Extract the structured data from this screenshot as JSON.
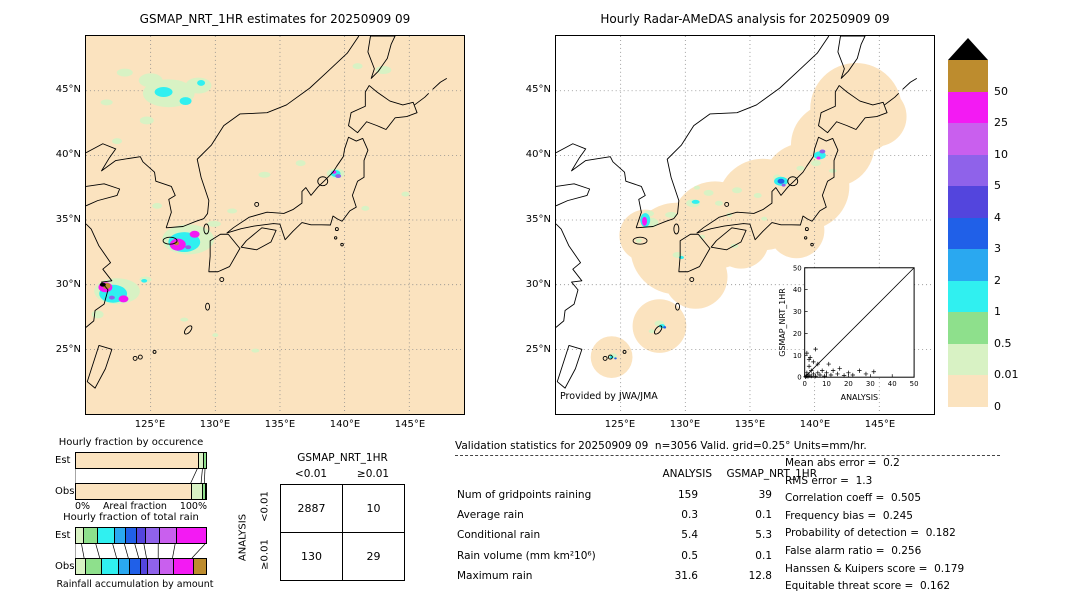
{
  "palette": {
    "peach": "#fbe3bf",
    "palegreen": "#d8f2c4",
    "green": "#8ee08c",
    "cyan": "#30f0f0",
    "sky": "#2aa8f0",
    "blue": "#2060e8",
    "indigo": "#5345dd",
    "purple": "#8f62ea",
    "orchid": "#c95fee",
    "magenta": "#f31af3",
    "tan": "#bd8c2e",
    "black": "#000000"
  },
  "colorbar": {
    "units": "mm/hr",
    "tick_labels": [
      "50",
      "25",
      "10",
      "5",
      "4",
      "3",
      "2",
      "1",
      "0.5",
      "0.01",
      "0"
    ],
    "levels_top_to_bottom": [
      "tan",
      "magenta",
      "orchid",
      "purple",
      "indigo",
      "blue",
      "sky",
      "cyan",
      "green",
      "palegreen",
      "peach"
    ],
    "over_color": "#000000"
  },
  "validation": {
    "header": "Validation statistics for 20250909 09  n=3056 Valid. grid=0.25° Units=mm/hr.",
    "col_headers": [
      "ANALYSIS",
      "GSMAP_NRT_1HR"
    ],
    "rows": [
      {
        "label": "Num of gridpoints raining",
        "analysis": "159",
        "gsmap": "39"
      },
      {
        "label": "Average rain",
        "analysis": "0.3",
        "gsmap": "0.1"
      },
      {
        "label": "Conditional rain",
        "analysis": "5.4",
        "gsmap": "5.3"
      },
      {
        "label": "Rain volume (mm km²10⁶)",
        "analysis": "0.5",
        "gsmap": "0.1"
      },
      {
        "label": "Maximum rain",
        "analysis": "31.6",
        "gsmap": "12.8"
      }
    ],
    "scores": [
      {
        "label": "Mean abs error",
        "value": "0.2"
      },
      {
        "label": "RMS error",
        "value": "1.3"
      },
      {
        "label": "Correlation coeff",
        "value": "0.505"
      },
      {
        "label": "Frequency bias",
        "value": "0.245"
      },
      {
        "label": "Probability of detection",
        "value": "0.182"
      },
      {
        "label": "False alarm ratio",
        "value": "0.256"
      },
      {
        "label": "Hanssen & Kuipers score",
        "value": "0.179"
      },
      {
        "label": "Equitable threat score",
        "value": "0.162"
      }
    ]
  },
  "chart_data": [
    {
      "type": "heatmap",
      "name": "gsmap-precip-map",
      "title": "GSMAP_NRT_1HR estimates for 20250909 09",
      "units": "mm/hr",
      "lon_range": [
        120,
        149.2
      ],
      "lat_range": [
        20,
        49.2
      ],
      "lon_gridlines": [
        125,
        130,
        135,
        140,
        145
      ],
      "lat_gridlines": [
        45,
        40,
        35,
        30,
        25
      ],
      "lon_tick_labels": [
        "125°E",
        "130°E",
        "135°E",
        "140°E",
        "145°E"
      ],
      "lat_tick_labels": [
        "45°N",
        "40°N",
        "35°N",
        "30°N",
        "25°N"
      ],
      "blob_format": [
        "lon",
        "lat",
        "rx_px",
        "ry_px",
        "level"
      ],
      "blobs": [
        [
          126.4,
          44.8,
          26,
          14,
          "palegreen"
        ],
        [
          125.0,
          45.8,
          12,
          7,
          "palegreen"
        ],
        [
          128.7,
          45.4,
          13,
          8,
          "palegreen"
        ],
        [
          123.0,
          46.4,
          8,
          4,
          "palegreen"
        ],
        [
          126.0,
          44.9,
          9,
          5,
          "cyan"
        ],
        [
          127.7,
          44.2,
          6,
          4,
          "cyan"
        ],
        [
          128.9,
          45.6,
          4,
          3,
          "cyan"
        ],
        [
          121.6,
          44.1,
          6,
          3,
          "palegreen"
        ],
        [
          124.7,
          42.7,
          7,
          4,
          "palegreen"
        ],
        [
          122.4,
          41.1,
          5,
          3,
          "palegreen"
        ],
        [
          125.5,
          36.1,
          5,
          3,
          "palegreen"
        ],
        [
          133.8,
          38.5,
          6,
          3,
          "palegreen"
        ],
        [
          136.6,
          39.4,
          5,
          3,
          "palegreen"
        ],
        [
          139.3,
          38.6,
          9,
          5,
          "palegreen"
        ],
        [
          139.3,
          38.6,
          5,
          3.5,
          "cyan"
        ],
        [
          139.5,
          38.4,
          3,
          2,
          "purple"
        ],
        [
          139.2,
          38.7,
          2,
          1.6,
          "magenta"
        ],
        [
          144.7,
          37.0,
          4,
          2.5,
          "palegreen"
        ],
        [
          141.6,
          35.9,
          4,
          2.5,
          "palegreen"
        ],
        [
          127.9,
          33.5,
          26,
          15,
          "palegreen"
        ],
        [
          127.6,
          33.3,
          16,
          10,
          "cyan"
        ],
        [
          127.1,
          33.1,
          8,
          6,
          "magenta"
        ],
        [
          128.4,
          33.9,
          5,
          3.5,
          "magenta"
        ],
        [
          127.0,
          33.2,
          2.5,
          2,
          "tan"
        ],
        [
          127.9,
          32.9,
          3,
          2,
          "purple"
        ],
        [
          129.9,
          34.7,
          7,
          3,
          "palegreen"
        ],
        [
          131.3,
          35.7,
          5,
          2.5,
          "palegreen"
        ],
        [
          122.4,
          29.5,
          23,
          13,
          "palegreen"
        ],
        [
          122.1,
          29.3,
          14,
          9,
          "cyan"
        ],
        [
          121.5,
          29.8,
          7,
          5,
          "magenta"
        ],
        [
          122.9,
          28.9,
          5,
          3.5,
          "magenta"
        ],
        [
          121.6,
          29.9,
          4,
          3,
          "tan"
        ],
        [
          121.3,
          30.0,
          3,
          2,
          "black"
        ],
        [
          122.0,
          29.0,
          3,
          2,
          "purple"
        ],
        [
          124.6,
          30.4,
          6,
          3,
          "palegreen"
        ],
        [
          124.5,
          30.3,
          3,
          1.8,
          "cyan"
        ],
        [
          120.9,
          27.7,
          6,
          4,
          "palegreen"
        ],
        [
          127.6,
          27.3,
          4,
          2,
          "palegreen"
        ],
        [
          133.1,
          24.9,
          4,
          2,
          "palegreen"
        ],
        [
          130.0,
          26.1,
          3,
          2,
          "palegreen"
        ],
        [
          143.0,
          46.6,
          8,
          4,
          "palegreen"
        ],
        [
          141.0,
          46.9,
          5,
          3,
          "palegreen"
        ]
      ]
    },
    {
      "type": "heatmap",
      "name": "radar-amedas-map",
      "title": "Hourly Radar-AMeDAS analysis for 20250909 09",
      "credit": "Provided by JWA/JMA",
      "units": "mm/hr",
      "lon_range": [
        120,
        149.2
      ],
      "lat_range": [
        20,
        49.2
      ],
      "lon_gridlines": [
        125,
        130,
        135,
        140,
        145
      ],
      "lat_gridlines": [
        45,
        40,
        35,
        30,
        25
      ],
      "lon_tick_labels": [
        "125°E",
        "130°E",
        "135°E",
        "140°E",
        "145°E"
      ],
      "lat_tick_labels": [
        "45°N",
        "40°N",
        "35°N",
        "30°N",
        "25°N"
      ],
      "coverage_format": [
        "lon",
        "lat",
        "r_px"
      ],
      "coverage": [
        [
          129.3,
          32.8,
          46
        ],
        [
          132.3,
          34.6,
          44
        ],
        [
          136.0,
          36.2,
          46
        ],
        [
          139.3,
          37.6,
          44
        ],
        [
          141.4,
          40.8,
          42
        ],
        [
          143.2,
          43.6,
          46
        ],
        [
          130.8,
          30.6,
          32
        ],
        [
          128.0,
          26.8,
          27
        ],
        [
          124.3,
          24.4,
          21
        ],
        [
          126.9,
          33.8,
          26
        ],
        [
          138.6,
          34.2,
          28
        ],
        [
          134.3,
          33.4,
          28
        ],
        [
          144.8,
          43.0,
          30
        ]
      ],
      "blob_format": [
        "lon",
        "lat",
        "rx_px",
        "ry_px",
        "level"
      ],
      "blobs": [
        [
          127.3,
          34.8,
          8,
          5,
          "palegreen"
        ],
        [
          127.2,
          35.5,
          5,
          3,
          "palegreen"
        ],
        [
          126.9,
          35.0,
          5,
          7,
          "cyan"
        ],
        [
          126.85,
          34.9,
          2.5,
          4.5,
          "magenta"
        ],
        [
          128.9,
          35.4,
          6,
          3,
          "palegreen"
        ],
        [
          130.6,
          36.3,
          7,
          4,
          "palegreen"
        ],
        [
          130.8,
          36.4,
          4,
          2,
          "cyan"
        ],
        [
          131.8,
          37.1,
          5,
          3,
          "palegreen"
        ],
        [
          132.6,
          36.3,
          4,
          2.5,
          "palegreen"
        ],
        [
          134.0,
          37.3,
          5,
          3,
          "palegreen"
        ],
        [
          130.9,
          37.5,
          3,
          2,
          "palegreen"
        ],
        [
          135.6,
          36.9,
          4,
          2.5,
          "palegreen"
        ],
        [
          137.1,
          38.3,
          4,
          3,
          "palegreen"
        ],
        [
          137.4,
          38.0,
          7,
          4.5,
          "cyan"
        ],
        [
          137.4,
          38.0,
          3.5,
          2.5,
          "blue"
        ],
        [
          137.6,
          37.7,
          2,
          1.5,
          "purple"
        ],
        [
          138.9,
          39.0,
          4,
          2.5,
          "palegreen"
        ],
        [
          140.1,
          39.4,
          5,
          3,
          "palegreen"
        ],
        [
          140.4,
          40.0,
          6,
          4,
          "cyan"
        ],
        [
          140.6,
          40.3,
          3,
          2,
          "purple"
        ],
        [
          140.3,
          39.8,
          2,
          1.5,
          "magenta"
        ],
        [
          141.4,
          38.8,
          4,
          2,
          "palegreen"
        ],
        [
          129.4,
          32.3,
          5,
          3,
          "palegreen"
        ],
        [
          129.7,
          32.1,
          2.5,
          1.5,
          "cyan"
        ],
        [
          131.3,
          33.7,
          3,
          2,
          "palegreen"
        ],
        [
          133.8,
          33.0,
          4,
          2,
          "palegreen"
        ],
        [
          128.0,
          27.0,
          5,
          3,
          "palegreen"
        ],
        [
          128.2,
          26.8,
          3,
          2,
          "cyan"
        ],
        [
          128.4,
          26.7,
          1.5,
          1.2,
          "blue"
        ],
        [
          127.4,
          26.4,
          3,
          2,
          "palegreen"
        ],
        [
          124.4,
          24.5,
          4,
          2.5,
          "palegreen"
        ],
        [
          124.3,
          24.4,
          2,
          1.5,
          "cyan"
        ],
        [
          124.6,
          24.3,
          1.3,
          1,
          "blue"
        ],
        [
          126.4,
          33.4,
          3,
          2,
          "palegreen"
        ],
        [
          133.4,
          35.4,
          3,
          2,
          "palegreen"
        ],
        [
          136.1,
          35.1,
          3,
          2,
          "palegreen"
        ]
      ]
    },
    {
      "type": "scatter",
      "name": "gsmap-vs-analysis-inset",
      "xlabel": "ANALYSIS",
      "ylabel": "GSMAP_NRT_1HR",
      "xlim": [
        0,
        50
      ],
      "ylim": [
        0,
        50
      ],
      "ticks": [
        0,
        10,
        20,
        30,
        40,
        50
      ],
      "diagonal_line": true,
      "points": [
        [
          0.3,
          0.2
        ],
        [
          0.8,
          0.5
        ],
        [
          1,
          2
        ],
        [
          1.5,
          0.3
        ],
        [
          2,
          1
        ],
        [
          2,
          5
        ],
        [
          2.5,
          9
        ],
        [
          3,
          0.5
        ],
        [
          3,
          3
        ],
        [
          4,
          1.5
        ],
        [
          4,
          7
        ],
        [
          5,
          0.5
        ],
        [
          5,
          12.8
        ],
        [
          6,
          2
        ],
        [
          6,
          6
        ],
        [
          7,
          1
        ],
        [
          8,
          3
        ],
        [
          9,
          0.5
        ],
        [
          10,
          2
        ],
        [
          11,
          6
        ],
        [
          12,
          1
        ],
        [
          13,
          3
        ],
        [
          15,
          1.5
        ],
        [
          16,
          4
        ],
        [
          18,
          0.8
        ],
        [
          20,
          2
        ],
        [
          22,
          1
        ],
        [
          25,
          3
        ],
        [
          28,
          1.5
        ],
        [
          31.6,
          2.5
        ],
        [
          1,
          11
        ],
        [
          2,
          8
        ]
      ]
    },
    {
      "type": "bar",
      "name": "occurrence-fractions",
      "title": "Hourly fraction by occurence",
      "categories": [
        "Est",
        "Obs"
      ],
      "axis": {
        "min_label": "0%",
        "label": "Areal fraction",
        "max_label": "100%"
      },
      "series": [
        {
          "name": "Est",
          "segments": [
            {
              "level": "peach",
              "pct": 94
            },
            {
              "level": "palegreen",
              "pct": 4
            },
            {
              "level": "green",
              "pct": 2
            }
          ]
        },
        {
          "name": "Obs",
          "segments": [
            {
              "level": "peach",
              "pct": 89
            },
            {
              "level": "palegreen",
              "pct": 8
            },
            {
              "level": "green",
              "pct": 2.5
            },
            {
              "level": "cyan",
              "pct": 0.5
            }
          ]
        }
      ]
    },
    {
      "type": "bar",
      "name": "total-rain-fractions",
      "title": "Hourly fraction of total rain",
      "caption": "Rainfall accumulation by amount",
      "categories": [
        "Est",
        "Obs"
      ],
      "series": [
        {
          "name": "Est",
          "segments": [
            {
              "level": "palegreen",
              "pct": 5
            },
            {
              "level": "green",
              "pct": 11
            },
            {
              "level": "cyan",
              "pct": 13
            },
            {
              "level": "sky",
              "pct": 9
            },
            {
              "level": "blue",
              "pct": 8
            },
            {
              "level": "indigo",
              "pct": 7
            },
            {
              "level": "purple",
              "pct": 11
            },
            {
              "level": "orchid",
              "pct": 13
            },
            {
              "level": "magenta",
              "pct": 23
            }
          ]
        },
        {
          "name": "Obs",
          "segments": [
            {
              "level": "palegreen",
              "pct": 7
            },
            {
              "level": "green",
              "pct": 12
            },
            {
              "level": "cyan",
              "pct": 13
            },
            {
              "level": "sky",
              "pct": 9
            },
            {
              "level": "blue",
              "pct": 8
            },
            {
              "level": "indigo",
              "pct": 6
            },
            {
              "level": "purple",
              "pct": 9
            },
            {
              "level": "orchid",
              "pct": 11
            },
            {
              "level": "magenta",
              "pct": 15
            },
            {
              "level": "tan",
              "pct": 10
            }
          ]
        }
      ]
    },
    {
      "type": "table",
      "name": "contingency-table",
      "title": "GSMAP_NRT_1HR",
      "col_headers": [
        "<0.01",
        "≥0.01"
      ],
      "row_headers": [
        "<0.01",
        "≥0.01"
      ],
      "side_label": "ANALYSIS",
      "values": [
        [
          2887,
          10
        ],
        [
          130,
          29
        ]
      ]
    }
  ]
}
